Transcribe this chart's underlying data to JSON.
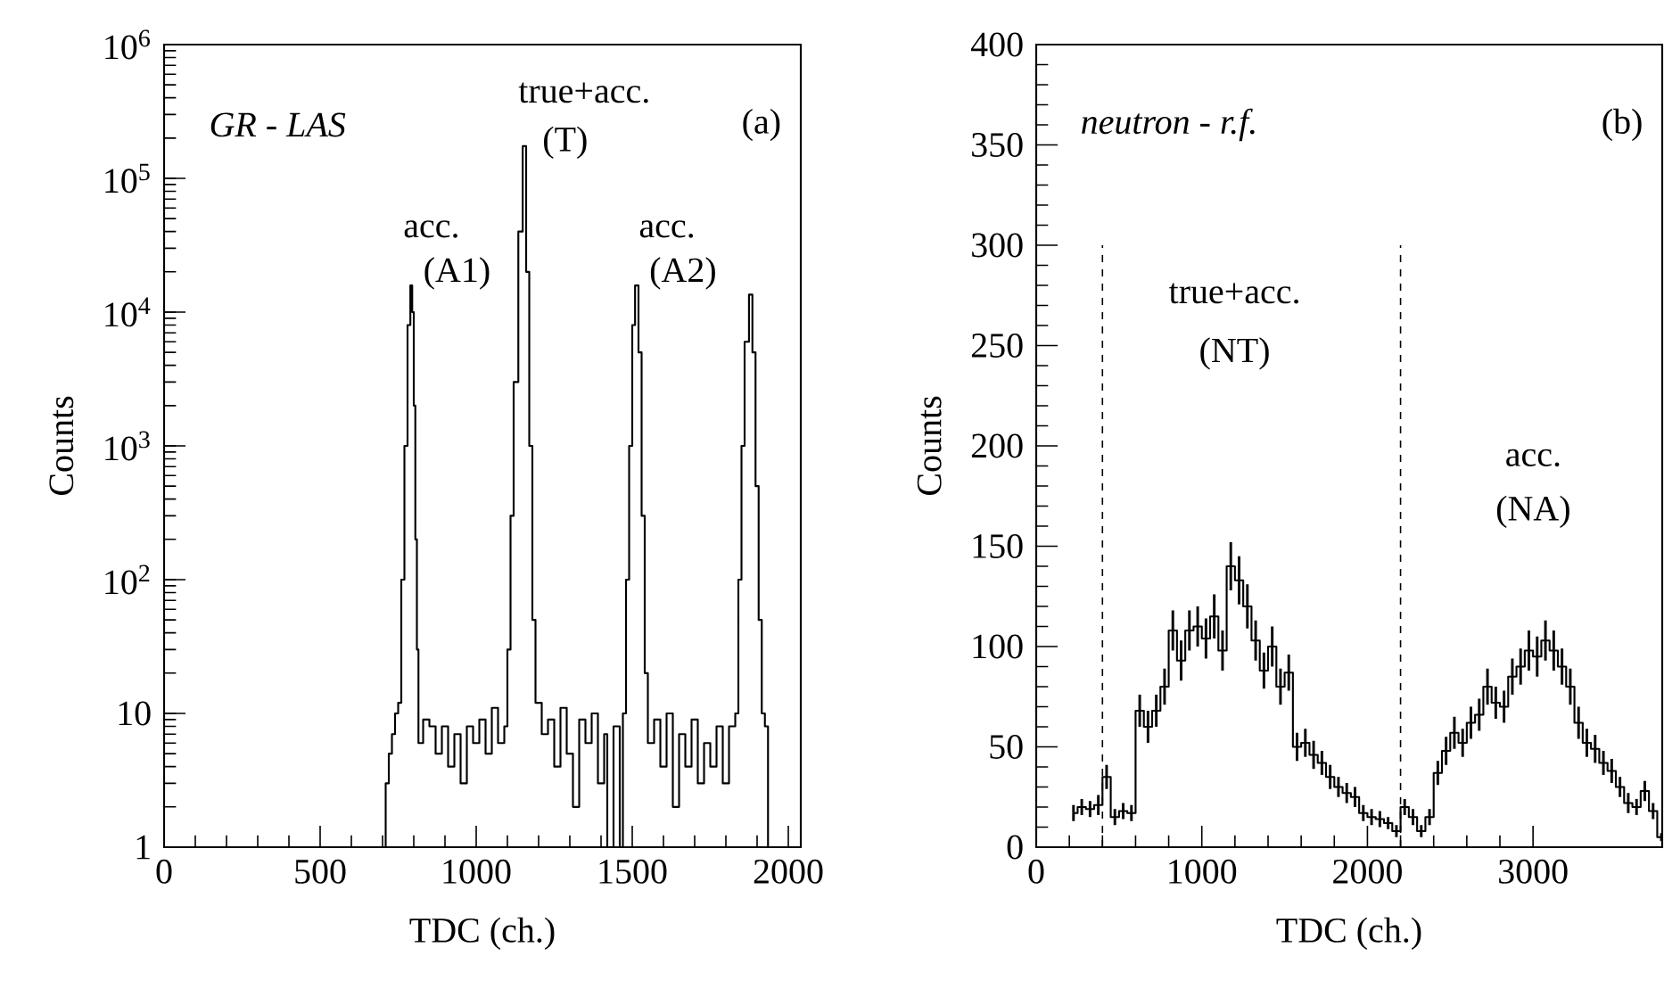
{
  "chart_data": [
    {
      "type": "step",
      "xlabel": "TDC  (ch.)",
      "ylabel": "Counts",
      "log": "y",
      "grid": false,
      "marker": "none",
      "line_style": "solid",
      "xlim": [
        0,
        2040
      ],
      "xticks": [
        0,
        500,
        1000,
        1500,
        2000
      ],
      "ylim": [
        1,
        1000000
      ],
      "yticks": [
        1,
        10,
        {
          "value": 100,
          "label": "10$^{2}$"
        },
        {
          "value": 1000,
          "label": "10$^{3}$"
        },
        {
          "value": 10000,
          "label": "10$^{4}$"
        },
        {
          "value": 100000,
          "label": "10$^{5}$"
        },
        {
          "value": 1000000,
          "label": "10$^{6}$"
        }
      ],
      "series": [
        {
          "color": "#000000",
          "x": [
            700,
            710,
            720,
            730,
            740,
            750,
            760,
            770,
            780,
            789,
            795,
            800,
            805,
            810,
            815,
            830,
            850,
            870,
            890,
            910,
            930,
            950,
            970,
            990,
            1010,
            1030,
            1050,
            1070,
            1090,
            1100,
            1110,
            1120,
            1135,
            1149,
            1160,
            1170,
            1180,
            1190,
            1210,
            1230,
            1250,
            1270,
            1290,
            1310,
            1330,
            1350,
            1370,
            1390,
            1410,
            1420,
            1440,
            1460,
            1470,
            1480,
            1490,
            1500,
            1509,
            1520,
            1530,
            1540,
            1550,
            1570,
            1590,
            1610,
            1630,
            1650,
            1670,
            1690,
            1710,
            1730,
            1750,
            1770,
            1790,
            1810,
            1830,
            1840,
            1850,
            1860,
            1874,
            1885,
            1895,
            1905,
            1915,
            1925,
            1935
          ],
          "values": [
            1,
            3,
            5,
            7,
            10,
            12,
            100,
            1000,
            8000,
            15800,
            10000,
            2000,
            200,
            30,
            6,
            9,
            8,
            5,
            8,
            4,
            7,
            3,
            8,
            6,
            9,
            5,
            11,
            6,
            8,
            30,
            300,
            3000,
            40000,
            174000,
            20000,
            1000,
            50,
            12,
            7,
            9,
            4,
            11,
            5,
            2,
            9,
            6,
            10,
            3,
            7,
            1,
            8,
            1,
            10,
            100,
            1000,
            8000,
            15800,
            5000,
            300,
            20,
            6,
            9,
            4,
            10,
            2,
            7,
            4,
            9,
            3,
            6,
            4,
            8,
            3,
            8,
            10,
            100,
            1000,
            6000,
            13500,
            5000,
            500,
            50,
            10,
            8,
            1
          ]
        }
      ],
      "annotations": [
        "GR - LAS",
        "(a)",
        "acc.",
        "(A1)",
        "true+acc.",
        "(T)",
        "acc.",
        "(A2)"
      ]
    },
    {
      "type": "step",
      "xlabel": "TDC  (ch.)",
      "ylabel": "Counts",
      "grid": false,
      "marker": "none",
      "line_style": "solid",
      "xlim": [
        0,
        3780
      ],
      "xticks": [
        0,
        1000,
        2000,
        3000
      ],
      "ylim": [
        0,
        400
      ],
      "yticks": [
        0,
        50,
        100,
        150,
        200,
        250,
        300,
        350,
        400
      ],
      "series": [
        {
          "color": "#000000",
          "x": [
            225,
            275,
            325,
            375,
            425,
            475,
            525,
            575,
            625,
            675,
            725,
            775,
            825,
            875,
            925,
            975,
            1025,
            1075,
            1125,
            1175,
            1225,
            1275,
            1325,
            1375,
            1425,
            1475,
            1525,
            1575,
            1625,
            1675,
            1725,
            1775,
            1825,
            1875,
            1925,
            1975,
            2025,
            2075,
            2125,
            2175,
            2225,
            2275,
            2325,
            2375,
            2425,
            2475,
            2525,
            2575,
            2625,
            2675,
            2725,
            2775,
            2825,
            2875,
            2925,
            2975,
            3025,
            3075,
            3125,
            3175,
            3225,
            3275,
            3325,
            3375,
            3425,
            3475,
            3525,
            3575,
            3625,
            3675,
            3725,
            3775
          ],
          "values": [
            17,
            20,
            19,
            21,
            35,
            15,
            18,
            17,
            68,
            60,
            68,
            80,
            108,
            93,
            108,
            110,
            104,
            115,
            98,
            140,
            133,
            120,
            103,
            88,
            100,
            80,
            87,
            50,
            52,
            46,
            42,
            35,
            30,
            27,
            25,
            17,
            15,
            14,
            12,
            8,
            20,
            15,
            8,
            15,
            37,
            48,
            57,
            52,
            62,
            66,
            80,
            72,
            70,
            85,
            90,
            98,
            95,
            103,
            98,
            90,
            80,
            62,
            52,
            49,
            42,
            38,
            30,
            22,
            20,
            28,
            18,
            5
          ],
          "errors": [
            4,
            4,
            4,
            5,
            6,
            4,
            4,
            4,
            8,
            8,
            8,
            9,
            10,
            10,
            10,
            10,
            10,
            11,
            10,
            12,
            12,
            11,
            10,
            9,
            10,
            9,
            9,
            7,
            7,
            7,
            6,
            6,
            5,
            5,
            5,
            4,
            4,
            4,
            3,
            3,
            4,
            4,
            3,
            4,
            6,
            7,
            8,
            7,
            8,
            8,
            9,
            8,
            8,
            9,
            9,
            10,
            10,
            10,
            10,
            9,
            9,
            8,
            7,
            7,
            6,
            6,
            5,
            5,
            4,
            5,
            4,
            2
          ]
        }
      ],
      "ref_lines": [
        {
          "axis": "x",
          "value": 400,
          "line_style": "dashed"
        },
        {
          "axis": "x",
          "value": 2200,
          "line_style": "dashed"
        }
      ],
      "annotations": [
        "neutron - r.f.",
        "(b)",
        "true+acc.",
        "(NT)",
        "acc.",
        "(NA)"
      ]
    }
  ]
}
